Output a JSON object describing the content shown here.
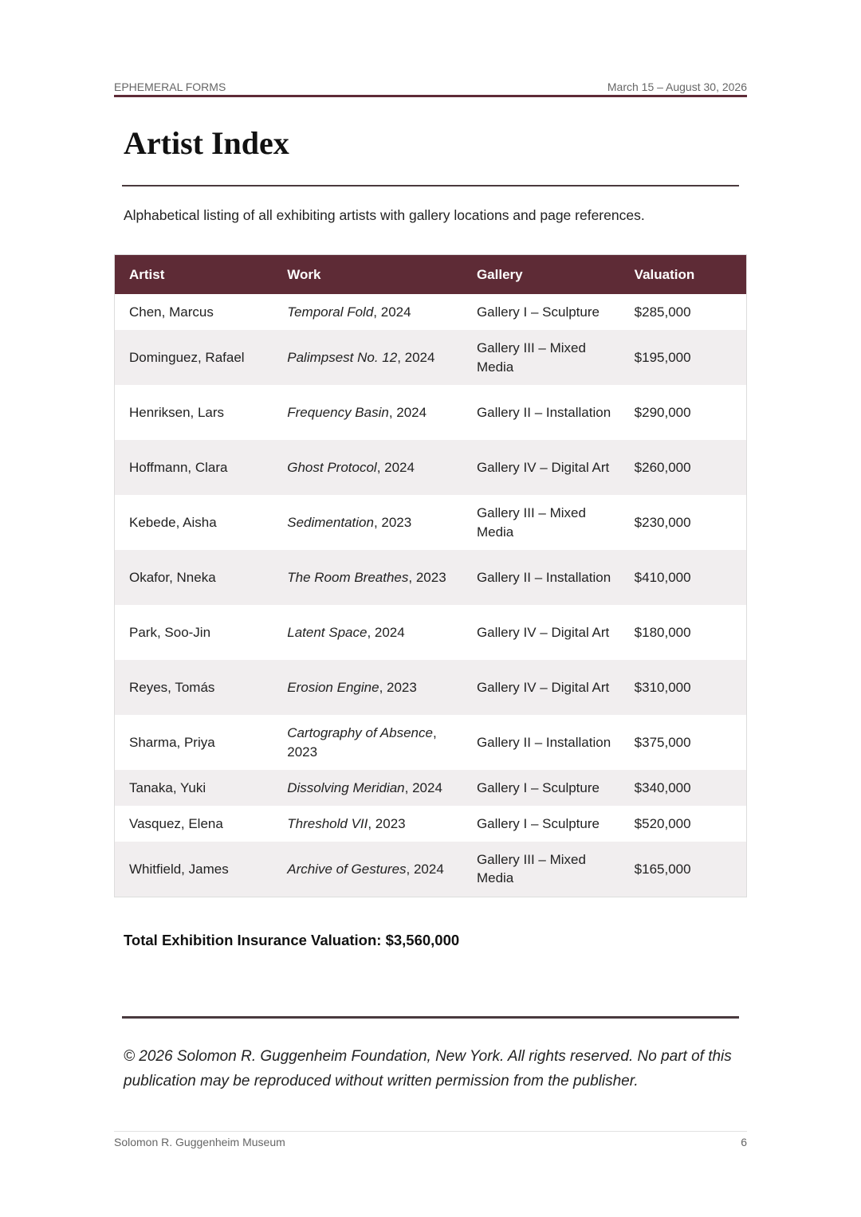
{
  "header": {
    "left": "EPHEMERAL FORMS",
    "right": "March 15 – August 30, 2026"
  },
  "title": "Artist Index",
  "intro": "Alphabetical listing of all exhibiting artists with gallery locations and page references.",
  "table": {
    "columns": [
      "Artist",
      "Work",
      "Gallery",
      "Valuation"
    ],
    "rows": [
      {
        "artist": "Chen, Marcus",
        "work": "Temporal Fold",
        "year": ", 2024",
        "gallery": "Gallery I – Sculpture",
        "valuation": "$285,000",
        "h": 45
      },
      {
        "artist": "Dominguez, Rafael",
        "work": "Palimpsest No. 12",
        "year": ", 2024",
        "gallery": "Gallery III – Mixed Media",
        "valuation": "$195,000",
        "h": 69
      },
      {
        "artist": "Henriksen, Lars",
        "work": "Frequency Basin",
        "year": ", 2024",
        "gallery": "Gallery II – Installation",
        "valuation": "$290,000",
        "h": 69
      },
      {
        "artist": "Hoffmann, Clara",
        "work": "Ghost Protocol",
        "year": ", 2024",
        "gallery": "Gallery IV – Digital Art",
        "valuation": "$260,000",
        "h": 69
      },
      {
        "artist": "Kebede, Aisha",
        "work": "Sedimentation",
        "year": ", 2023",
        "gallery": "Gallery III – Mixed Media",
        "valuation": "$230,000",
        "h": 69
      },
      {
        "artist": "Okafor, Nneka",
        "work": "The Room Breathes",
        "year": ", 2023",
        "gallery": "Gallery II – Installation",
        "valuation": "$410,000",
        "h": 69
      },
      {
        "artist": "Park, Soo-Jin",
        "work": "Latent Space",
        "year": ", 2024",
        "gallery": "Gallery IV – Digital Art",
        "valuation": "$180,000",
        "h": 69
      },
      {
        "artist": "Reyes, Tomás",
        "work": "Erosion Engine",
        "year": ", 2023",
        "gallery": "Gallery IV – Digital Art",
        "valuation": "$310,000",
        "h": 69
      },
      {
        "artist": "Sharma, Priya",
        "work": "Cartography of Absence",
        "year": ", 2023",
        "gallery": "Gallery II – Installation",
        "valuation": "$375,000",
        "h": 69
      },
      {
        "artist": "Tanaka, Yuki",
        "work": "Dissolving Meridian",
        "year": ", 2024",
        "gallery": "Gallery I – Sculpture",
        "valuation": "$340,000",
        "h": 45
      },
      {
        "artist": "Vasquez, Elena",
        "work": "Threshold VII",
        "year": ", 2023",
        "gallery": "Gallery I – Sculpture",
        "valuation": "$520,000",
        "h": 45
      },
      {
        "artist": "Whitfield, James",
        "work": "Archive of Gestures",
        "year": ", 2024",
        "gallery": "Gallery III – Mixed Media",
        "valuation": "$165,000",
        "h": 69
      }
    ]
  },
  "total": "Total Exhibition Insurance Valuation: $3,560,000",
  "copyright": "© 2026 Solomon R. Guggenheim Foundation, New York. All rights reserved. No part of this publication may be reproduced without written permission from the publisher.",
  "footer": {
    "left": "Solomon R. Guggenheim Museum",
    "page": "6"
  },
  "colors": {
    "accent": "#5e2b36",
    "row_alt": "#f1eeef"
  }
}
